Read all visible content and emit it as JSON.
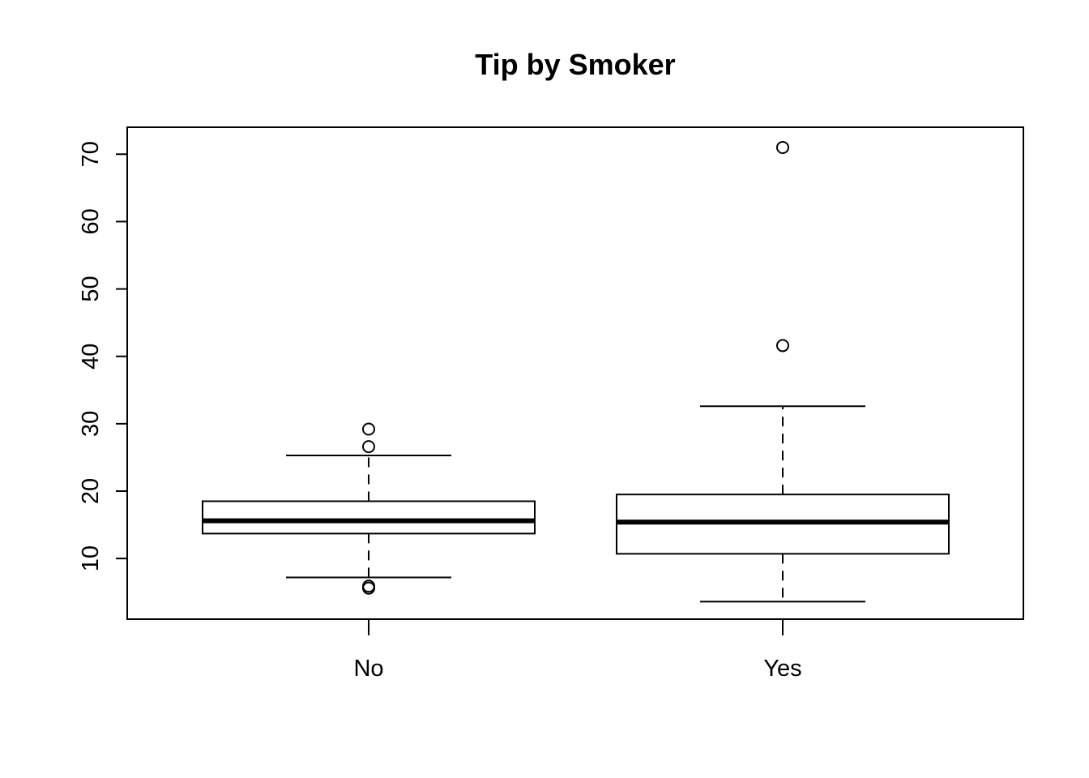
{
  "chart_data": {
    "type": "boxplot",
    "title": "Tip by Smoker",
    "xlabel": "",
    "ylabel": "",
    "ylim": [
      1,
      74
    ],
    "yticks": [
      10,
      20,
      30,
      40,
      50,
      60,
      70
    ],
    "grid": false,
    "categories": [
      "No",
      "Yes"
    ],
    "boxes": [
      {
        "category": "No",
        "whisker_low": 7.2,
        "q1": 13.7,
        "median": 15.6,
        "q3": 18.5,
        "whisker_high": 25.3,
        "outliers": [
          5.6,
          5.9,
          26.6,
          29.2
        ]
      },
      {
        "category": "Yes",
        "whisker_low": 3.6,
        "q1": 10.7,
        "median": 15.4,
        "q3": 19.5,
        "whisker_high": 32.6,
        "outliers": [
          41.6,
          71.0
        ]
      }
    ]
  }
}
